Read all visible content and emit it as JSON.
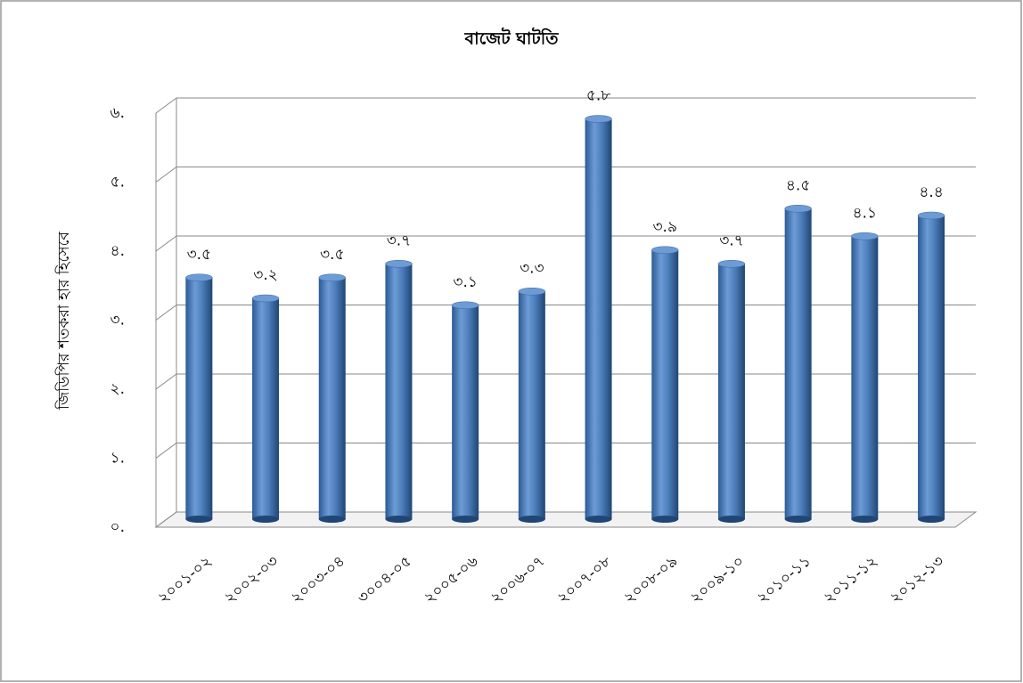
{
  "chart_data": {
    "type": "bar",
    "title": "বাজেট ঘাটতি",
    "y_label": "জিডিপির শতকরা হার হিসেবে",
    "categories": [
      "২০০১-০২",
      "২০০২-০৩",
      "২০০৩-০৪",
      "৩০০৪-০৫",
      "২০০৫-০৬",
      "২০০৬-০৭",
      "২০০৭-০৮",
      "২০০৮-০৯",
      "২০০৯-১০",
      "২০১০-১১",
      "২০১১-১২",
      "২০১২-১৩"
    ],
    "values": [
      3.5,
      3.2,
      3.5,
      3.7,
      3.1,
      3.3,
      5.8,
      3.9,
      3.7,
      4.5,
      4.1,
      4.4
    ],
    "value_labels": [
      "৩.৫",
      "৩.২",
      "৩.৫",
      "৩.৭",
      "৩.১",
      "৩.৩",
      "৫.৮",
      "৩.৯",
      "৩.৭",
      "৪.৫",
      "৪.১",
      "৪.৪"
    ],
    "color": "#4f81bd",
    "ylim": [
      0,
      6
    ],
    "yticks": [
      {
        "value": 0,
        "label": "০."
      },
      {
        "value": 1,
        "label": "১."
      },
      {
        "value": 2,
        "label": "২."
      },
      {
        "value": 3,
        "label": "৩."
      },
      {
        "value": 4,
        "label": "৪."
      },
      {
        "value": 5,
        "label": "৫."
      },
      {
        "value": 6,
        "label": "৬."
      }
    ],
    "grid": true
  }
}
